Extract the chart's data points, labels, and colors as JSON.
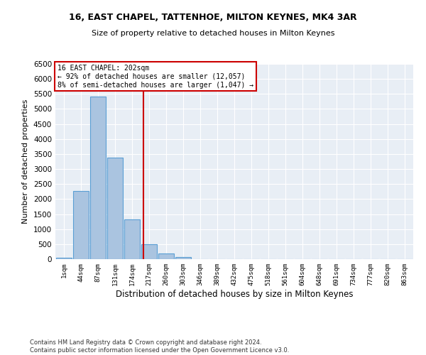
{
  "title1": "16, EAST CHAPEL, TATTENHOE, MILTON KEYNES, MK4 3AR",
  "title2": "Size of property relative to detached houses in Milton Keynes",
  "xlabel": "Distribution of detached houses by size in Milton Keynes",
  "ylabel": "Number of detached properties",
  "footer1": "Contains HM Land Registry data © Crown copyright and database right 2024.",
  "footer2": "Contains public sector information licensed under the Open Government Licence v3.0.",
  "annotation_line1": "16 EAST CHAPEL: 202sqm",
  "annotation_line2": "← 92% of detached houses are smaller (12,057)",
  "annotation_line3": "8% of semi-detached houses are larger (1,047) →",
  "bar_categories": [
    "1sqm",
    "44sqm",
    "87sqm",
    "131sqm",
    "174sqm",
    "217sqm",
    "260sqm",
    "303sqm",
    "346sqm",
    "389sqm",
    "432sqm",
    "475sqm",
    "518sqm",
    "561sqm",
    "604sqm",
    "648sqm",
    "691sqm",
    "734sqm",
    "777sqm",
    "820sqm",
    "863sqm"
  ],
  "bar_values": [
    50,
    2270,
    5420,
    3380,
    1320,
    500,
    180,
    75,
    0,
    0,
    0,
    0,
    0,
    0,
    0,
    0,
    0,
    0,
    0,
    0,
    0
  ],
  "bar_color": "#aac4e0",
  "bar_edge_color": "#5a9fd4",
  "vline_x_index": 4.65,
  "vline_color": "#cc0000",
  "annotation_box_color": "#cc0000",
  "bg_color": "#e8eef5",
  "ylim": [
    0,
    6500
  ],
  "yticks": [
    0,
    500,
    1000,
    1500,
    2000,
    2500,
    3000,
    3500,
    4000,
    4500,
    5000,
    5500,
    6000,
    6500
  ]
}
